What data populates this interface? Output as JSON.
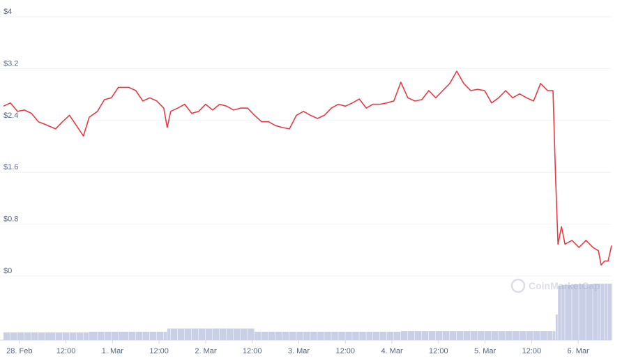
{
  "chart_data": {
    "type": "line",
    "watermark": "CoinMarketCap",
    "x": [
      -4.1,
      -2.3,
      -0.5,
      1.3,
      3.1,
      4.9,
      6.6,
      9.3,
      11.1,
      12.9,
      14.7,
      16.5,
      18.0,
      20.1,
      21.9,
      23.7,
      25.5,
      28.2,
      30.0,
      31.8,
      33.6,
      35.4,
      37.2,
      38.1,
      39.0,
      40.8,
      42.6,
      44.4,
      46.2,
      48.0,
      49.8,
      51.6,
      53.4,
      55.2,
      57.0,
      58.8,
      60.6,
      62.4,
      64.2,
      66.0,
      67.8,
      69.6,
      71.4,
      73.2,
      75.0,
      76.8,
      78.6,
      80.4,
      82.2,
      84.0,
      85.8,
      87.6,
      89.4,
      91.1,
      92.9,
      94.7,
      96.5,
      98.3,
      100.1,
      101.9,
      103.7,
      105.5,
      107.3,
      109.1,
      110.9,
      112.7,
      114.5,
      116.3,
      118.1,
      119.9,
      121.7,
      123.5,
      125.3,
      127.1,
      128.9,
      130.7,
      132.5,
      134.3,
      136.1,
      137.5,
      138.2,
      138.8,
      139.7,
      140.6,
      142.4,
      144.2,
      146.0,
      147.8,
      149.2,
      149.9,
      150.8,
      151.7,
      152.6
    ],
    "values": [
      2.62,
      2.67,
      2.54,
      2.56,
      2.51,
      2.38,
      2.34,
      2.27,
      2.38,
      2.48,
      2.32,
      2.16,
      2.45,
      2.54,
      2.72,
      2.75,
      2.91,
      2.91,
      2.86,
      2.7,
      2.75,
      2.7,
      2.59,
      2.29,
      2.54,
      2.59,
      2.65,
      2.51,
      2.54,
      2.65,
      2.56,
      2.65,
      2.62,
      2.56,
      2.59,
      2.59,
      2.48,
      2.38,
      2.38,
      2.32,
      2.29,
      2.27,
      2.48,
      2.54,
      2.48,
      2.43,
      2.48,
      2.59,
      2.65,
      2.62,
      2.67,
      2.73,
      2.59,
      2.65,
      2.65,
      2.67,
      2.7,
      2.99,
      2.75,
      2.7,
      2.72,
      2.86,
      2.75,
      2.86,
      2.97,
      3.16,
      2.97,
      2.86,
      2.88,
      2.86,
      2.67,
      2.75,
      2.86,
      2.75,
      2.81,
      2.75,
      2.7,
      2.97,
      2.86,
      2.86,
      1.46,
      0.49,
      0.76,
      0.49,
      0.55,
      0.44,
      0.55,
      0.44,
      0.39,
      0.17,
      0.23,
      0.23,
      0.47
    ],
    "volume": [
      12,
      12,
      12,
      12,
      12,
      12,
      12,
      12,
      12,
      12,
      12,
      12,
      13,
      13,
      13,
      13,
      13,
      13,
      13,
      13,
      13,
      13,
      13,
      18,
      18,
      18,
      18,
      18,
      18,
      18,
      18,
      18,
      18,
      18,
      18,
      18,
      13,
      13,
      13,
      13,
      13,
      13,
      13,
      13,
      13,
      13,
      13,
      13,
      13,
      13,
      13,
      13,
      13,
      13,
      13,
      13,
      13,
      14,
      14,
      14,
      14,
      14,
      14,
      14,
      14,
      14,
      14,
      14,
      14,
      14,
      14,
      14,
      14,
      14,
      14,
      14,
      14,
      14,
      14,
      14,
      40,
      85,
      86,
      86,
      87,
      87,
      87,
      88,
      88,
      88,
      88,
      88,
      88
    ],
    "color": "#ea3943",
    "volume_color": "#c9cfe6",
    "xlim": [
      -4.1,
      152.6
    ],
    "xticks": [
      {
        "value": 0,
        "label": "28. Feb"
      },
      {
        "value": 12,
        "label": "12:00"
      },
      {
        "value": 24,
        "label": "1. Mar"
      },
      {
        "value": 36,
        "label": "12:00"
      },
      {
        "value": 48,
        "label": "2. Mar"
      },
      {
        "value": 60,
        "label": "12:00"
      },
      {
        "value": 72,
        "label": "3. Mar"
      },
      {
        "value": 84,
        "label": "12:00"
      },
      {
        "value": 96,
        "label": "4. Mar"
      },
      {
        "value": 108,
        "label": "12:00"
      },
      {
        "value": 120,
        "label": "5. Mar"
      },
      {
        "value": 132,
        "label": "12:00"
      },
      {
        "value": 144,
        "label": "6. Mar"
      }
    ],
    "ylim": [
      0,
      4
    ],
    "yticks": [
      {
        "value": 0,
        "label": "$0"
      },
      {
        "value": 0.8,
        "label": "$0.8"
      },
      {
        "value": 1.6,
        "label": "$1.6"
      },
      {
        "value": 2.4,
        "label": "$2.4"
      },
      {
        "value": 3.2,
        "label": "$3.2"
      },
      {
        "value": 4,
        "label": "$4"
      }
    ],
    "y2lim": [
      0,
      100
    ],
    "grid": true
  }
}
